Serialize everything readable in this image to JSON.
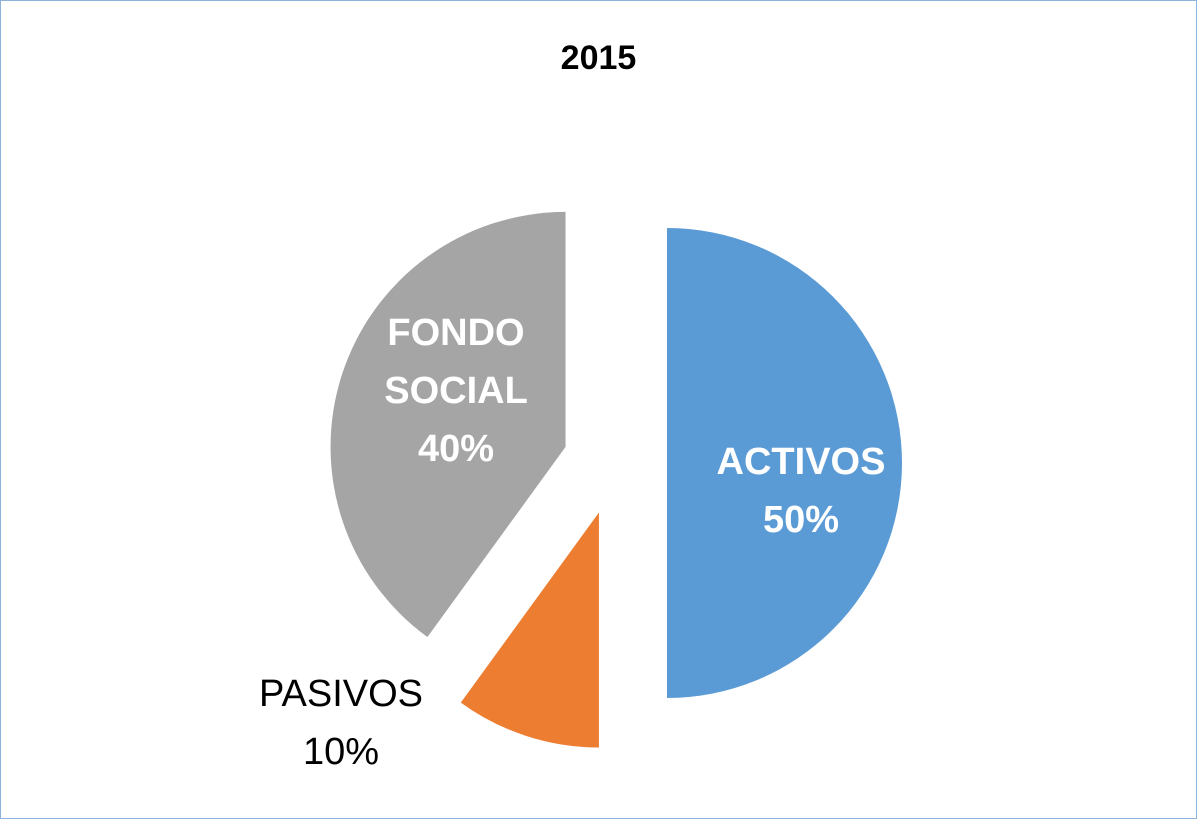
{
  "chart_data": {
    "type": "pie",
    "title": "2015",
    "categories": [
      "ACTIVOS",
      "PASIVOS",
      "FONDO SOCIAL"
    ],
    "values": [
      50,
      10,
      40
    ],
    "value_labels": [
      "50%",
      "10%",
      "40%"
    ],
    "colors": [
      "#5b9bd5",
      "#ed7d31",
      "#a5a5a5"
    ]
  }
}
